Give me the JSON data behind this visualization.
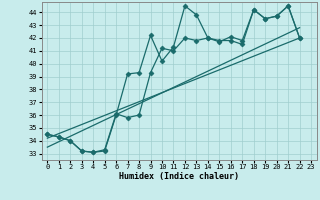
{
  "xlabel": "Humidex (Indice chaleur)",
  "bg_color": "#c8ecec",
  "grid_color": "#a0cece",
  "line_color": "#1a6b6b",
  "xlim": [
    -0.5,
    23.5
  ],
  "ylim": [
    32.5,
    44.8
  ],
  "yticks": [
    33,
    34,
    35,
    36,
    37,
    38,
    39,
    40,
    41,
    42,
    43,
    44
  ],
  "xticks": [
    0,
    1,
    2,
    3,
    4,
    5,
    6,
    7,
    8,
    9,
    10,
    11,
    12,
    13,
    14,
    15,
    16,
    17,
    18,
    19,
    20,
    21,
    22,
    23
  ],
  "line1_x": [
    0,
    1,
    2,
    3,
    4,
    5,
    6,
    7,
    8,
    9,
    10,
    11,
    12,
    13,
    14,
    15,
    16,
    17,
    18,
    19,
    20,
    21,
    22
  ],
  "line1_y": [
    34.5,
    34.3,
    34.0,
    33.2,
    33.1,
    33.2,
    36.0,
    39.2,
    39.3,
    42.2,
    40.2,
    41.3,
    44.5,
    43.8,
    42.0,
    41.8,
    41.8,
    41.5,
    44.2,
    43.5,
    43.7,
    44.5,
    42.0
  ],
  "line2_x": [
    0,
    1,
    2,
    3,
    4,
    5,
    6,
    7,
    8,
    9,
    10,
    11,
    12,
    13,
    14,
    15,
    16,
    17,
    18,
    19,
    20,
    21,
    22
  ],
  "line2_y": [
    34.5,
    34.3,
    34.0,
    33.2,
    33.1,
    33.3,
    36.1,
    35.8,
    36.0,
    39.3,
    41.2,
    41.0,
    42.0,
    41.8,
    42.0,
    41.7,
    42.1,
    41.8,
    44.2,
    43.5,
    43.7,
    44.5,
    42.0
  ],
  "trend1_x": [
    0,
    22
  ],
  "trend1_y": [
    34.2,
    42.0
  ],
  "trend2_x": [
    0,
    22
  ],
  "trend2_y": [
    33.5,
    42.8
  ]
}
